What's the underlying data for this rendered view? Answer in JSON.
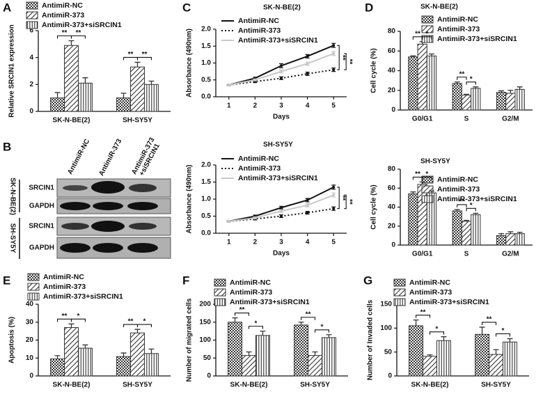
{
  "panel_labels": [
    "A",
    "B",
    "C",
    "D",
    "E",
    "F",
    "G"
  ],
  "blot": {
    "columns": [
      [
        "AntimiR-NC"
      ],
      [
        "AntimiR-373"
      ],
      [
        "AntimiR-373",
        "+siSRCIN1"
      ]
    ],
    "rows": [
      {
        "group": "SK-N-BE(2)",
        "lanes": [
          "SRCIN1",
          "GAPDH"
        ]
      },
      {
        "group": "SH-SY5Y",
        "lanes": [
          "SRCIN1",
          "GAPDH"
        ]
      }
    ]
  },
  "chart_data": [
    {
      "type": "bar",
      "y_label": "Relative SRCIN1 expression",
      "categories": [
        "SK-N-BE(2)",
        "SH-SY5Y"
      ],
      "series": [
        {
          "name": "AntimiR-NC",
          "color": "#333333",
          "pattern": "checker",
          "values": [
            1.0,
            1.0
          ],
          "errors": [
            0.4,
            0.35
          ]
        },
        {
          "name": "AntimiR-373",
          "color": "#333333",
          "pattern": "diagonal",
          "values": [
            4.9,
            3.3
          ],
          "errors": [
            0.35,
            0.35
          ]
        },
        {
          "name": "AntimiR-373+siSRCIN1",
          "color": "#333333",
          "pattern": "vertical",
          "values": [
            2.1,
            2.0
          ],
          "errors": [
            0.4,
            0.25
          ]
        }
      ],
      "ylim": [
        0,
        6
      ],
      "yticks": [
        0,
        2,
        4,
        6
      ],
      "significance": [
        [
          "**",
          "**"
        ],
        [
          "**",
          "**"
        ]
      ]
    },
    {
      "type": "line",
      "title": "SK-N-BE(2)",
      "x_label": "Days",
      "y_label": "Absorbance (490nm)",
      "x": [
        1,
        2,
        3,
        4,
        5
      ],
      "xlim": [
        0.5,
        5.5
      ],
      "xticks": [
        1,
        2,
        3,
        4,
        5
      ],
      "ylim": [
        0,
        2
      ],
      "yticks": [
        {
          "value": 0,
          "label": "0.0"
        },
        0.5,
        {
          "value": 1,
          "label": "1.0"
        },
        1.5,
        {
          "value": 2,
          "label": "2.0"
        }
      ],
      "series": [
        {
          "name": "AntimiR-NC",
          "color": "#111111",
          "dash": false,
          "values": [
            0.35,
            0.55,
            0.92,
            1.2,
            1.52
          ],
          "errors": [
            0.02,
            0.03,
            0.06,
            0.05,
            0.06
          ]
        },
        {
          "name": "AntimiR-373",
          "color": "#111111",
          "dash": true,
          "values": [
            0.35,
            0.45,
            0.55,
            0.68,
            0.8
          ],
          "errors": [
            0.02,
            0.03,
            0.04,
            0.05,
            0.05
          ]
        },
        {
          "name": "AntimiR-373+siSRCIN1",
          "color": "#c8c8c8",
          "dash": false,
          "values": [
            0.35,
            0.5,
            0.75,
            0.98,
            1.28
          ],
          "errors": [
            0.02,
            0.03,
            0.05,
            0.05,
            0.06
          ]
        }
      ],
      "significance": [
        "**",
        "**"
      ]
    },
    {
      "type": "line",
      "title": "SH-SY5Y",
      "x_label": "Days",
      "y_label": "Absorbance (490nm)",
      "x": [
        1,
        2,
        3,
        4,
        5
      ],
      "xlim": [
        0.5,
        5.5
      ],
      "xticks": [
        1,
        2,
        3,
        4,
        5
      ],
      "ylim": [
        0,
        2
      ],
      "yticks": [
        {
          "value": 0,
          "label": "0.0"
        },
        0.5,
        {
          "value": 1,
          "label": "1.0"
        },
        1.5,
        {
          "value": 2,
          "label": "2.0"
        }
      ],
      "series": [
        {
          "name": "AntimiR-NC",
          "color": "#111111",
          "dash": false,
          "values": [
            0.35,
            0.5,
            0.75,
            0.97,
            1.35
          ],
          "errors": [
            0.02,
            0.03,
            0.04,
            0.05,
            0.06
          ]
        },
        {
          "name": "AntimiR-373",
          "color": "#111111",
          "dash": true,
          "values": [
            0.35,
            0.42,
            0.5,
            0.6,
            0.72
          ],
          "errors": [
            0.02,
            0.03,
            0.04,
            0.04,
            0.05
          ]
        },
        {
          "name": "AntimiR-373+siSRCIN1",
          "color": "#c8c8c8",
          "dash": false,
          "values": [
            0.35,
            0.45,
            0.65,
            0.82,
            1.12
          ],
          "errors": [
            0.02,
            0.03,
            0.04,
            0.05,
            0.06
          ]
        }
      ],
      "significance": [
        "**",
        "**"
      ]
    },
    {
      "type": "bar",
      "title": "SK-N-BE(2)",
      "y_label": "Cell cycle (%)",
      "categories": [
        "G0/G1",
        "S",
        "G2/M"
      ],
      "series": [
        {
          "name": "AntimiR-NC",
          "color": "#333333",
          "pattern": "checker",
          "values": [
            54,
            27,
            18
          ],
          "errors": [
            1,
            1.5,
            1.5
          ]
        },
        {
          "name": "AntimiR-373",
          "color": "#333333",
          "pattern": "diagonal",
          "values": [
            67,
            15,
            17
          ],
          "errors": [
            2.5,
            1,
            3
          ]
        },
        {
          "name": "AntimiR-373+siSRCIN1",
          "color": "#333333",
          "pattern": "vertical",
          "values": [
            55,
            22,
            21
          ],
          "errors": [
            2,
            1.5,
            2.5
          ]
        }
      ],
      "ylim": [
        0,
        80
      ],
      "yticks": [
        0,
        20,
        40,
        60,
        80
      ],
      "significance": [
        [
          "**",
          "*"
        ],
        [
          "**",
          "*"
        ]
      ]
    },
    {
      "type": "bar",
      "title": "SH-SY5Y",
      "y_label": "Cell cycle (%)",
      "categories": [
        "G0/G1",
        "S",
        "G2/M"
      ],
      "series": [
        {
          "name": "AntimiR-NC",
          "color": "#333333",
          "pattern": "checker",
          "values": [
            54,
            36,
            10
          ],
          "errors": [
            2,
            1.5,
            2
          ]
        },
        {
          "name": "AntimiR-373",
          "color": "#333333",
          "pattern": "diagonal",
          "values": [
            64,
            25,
            12
          ],
          "errors": [
            2.5,
            1,
            2
          ]
        },
        {
          "name": "AntimiR-373+siSRCIN1",
          "color": "#333333",
          "pattern": "vertical",
          "values": [
            55,
            32,
            12
          ],
          "errors": [
            2,
            1.5,
            1.5
          ]
        }
      ],
      "ylim": [
        0,
        80
      ],
      "yticks": [
        0,
        20,
        40,
        60,
        80
      ],
      "significance": [
        [
          "**",
          "*"
        ],
        [
          "**",
          "*"
        ]
      ]
    },
    {
      "type": "bar",
      "y_label": "Apoptosis (%)",
      "categories": [
        "SK-N-BE(2)",
        "SH-SY5Y"
      ],
      "series": [
        {
          "name": "AntimiR-NC",
          "color": "#333333",
          "pattern": "checker",
          "values": [
            9.5,
            10.8
          ],
          "errors": [
            1.8,
            2
          ]
        },
        {
          "name": "AntimiR-373",
          "color": "#333333",
          "pattern": "diagonal",
          "values": [
            27,
            24
          ],
          "errors": [
            2,
            2
          ]
        },
        {
          "name": "AntimiR-373+siSRCIN1",
          "color": "#333333",
          "pattern": "vertical",
          "values": [
            15.5,
            12.5
          ],
          "errors": [
            1.8,
            2.5
          ]
        }
      ],
      "ylim": [
        0,
        40
      ],
      "yticks": [
        0,
        10,
        20,
        30,
        40
      ],
      "significance": [
        [
          "**",
          "*"
        ],
        [
          "**",
          "*"
        ]
      ]
    },
    {
      "type": "bar",
      "y_label": "Number of migrated cells",
      "categories": [
        "SK-N-BE(2)",
        "SH-SY5Y"
      ],
      "series": [
        {
          "name": "AntimiR-NC",
          "color": "#333333",
          "pattern": "checker",
          "values": [
            150,
            142
          ],
          "errors": [
            12,
            8
          ]
        },
        {
          "name": "AntimiR-373",
          "color": "#333333",
          "pattern": "diagonal",
          "values": [
            57,
            57
          ],
          "errors": [
            10,
            10
          ]
        },
        {
          "name": "AntimiR-373+siSRCIN1",
          "color": "#333333",
          "pattern": "vertical",
          "values": [
            113,
            107
          ],
          "errors": [
            12,
            8
          ]
        }
      ],
      "ylim": [
        0,
        200
      ],
      "yticks": [
        0,
        50,
        100,
        150,
        200
      ],
      "significance": [
        [
          "**",
          "*"
        ],
        [
          "**",
          "*"
        ]
      ]
    },
    {
      "type": "bar",
      "y_label": "Number of Invaded cells",
      "categories": [
        "SK-N-BE(2)",
        "SH-SY5Y"
      ],
      "series": [
        {
          "name": "AntimiR-NC",
          "color": "#333333",
          "pattern": "checker",
          "values": [
            105,
            87
          ],
          "errors": [
            12,
            15
          ]
        },
        {
          "name": "AntimiR-373",
          "color": "#333333",
          "pattern": "diagonal",
          "values": [
            41,
            45
          ],
          "errors": [
            3,
            10
          ]
        },
        {
          "name": "AntimiR-373+siSRCIN1",
          "color": "#333333",
          "pattern": "vertical",
          "values": [
            74,
            71
          ],
          "errors": [
            8,
            7
          ]
        }
      ],
      "ylim": [
        0,
        150
      ],
      "yticks": [
        0,
        50,
        100,
        150
      ],
      "significance": [
        [
          "**",
          "*"
        ],
        [
          "**",
          "*"
        ]
      ]
    }
  ]
}
